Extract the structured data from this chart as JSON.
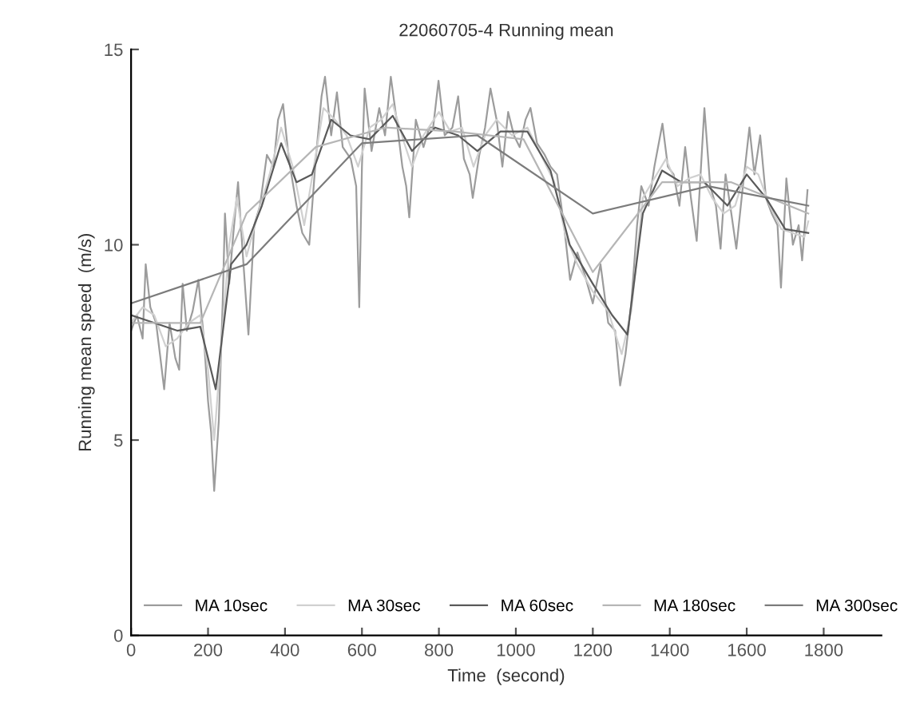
{
  "chart_data": {
    "type": "line",
    "title": "22060705-4 Running mean",
    "xlabel": "Time  (second)",
    "ylabel": "Running mean speed  (m/s)",
    "xlim": [
      0,
      1950
    ],
    "ylim": [
      0,
      15
    ],
    "xticks": [
      0,
      200,
      400,
      600,
      800,
      1000,
      1200,
      1400,
      1600,
      1800
    ],
    "yticks": [
      0,
      5,
      10,
      15
    ],
    "grid": false,
    "legend": "bottom",
    "marker": "none",
    "line_style": "solid",
    "series": [
      {
        "name": "MA 10sec",
        "color": "#9c9c9c",
        "x": [
          0,
          15,
          30,
          38,
          50,
          65,
          75,
          86,
          100,
          115,
          125,
          134,
          145,
          160,
          175,
          190,
          200,
          208,
          216,
          228,
          238,
          244,
          255,
          265,
          278,
          290,
          305,
          320,
          335,
          353,
          370,
          382,
          395,
          410,
          430,
          445,
          463,
          480,
          495,
          504,
          520,
          535,
          550,
          571,
          585,
          593,
          600,
          607,
          625,
          645,
          660,
          675,
          690,
          705,
          715,
          723,
          740,
          760,
          775,
          785,
          799,
          815,
          835,
          850,
          865,
          880,
          888,
          905,
          920,
          934,
          950,
          965,
          980,
          995,
          1010,
          1025,
          1038,
          1055,
          1075,
          1090,
          1107,
          1125,
          1141,
          1160,
          1180,
          1200,
          1220,
          1240,
          1258,
          1271,
          1285,
          1300,
          1315,
          1326,
          1345,
          1360,
          1381,
          1395,
          1410,
          1425,
          1440,
          1455,
          1470,
          1490,
          1505,
          1520,
          1532,
          1545,
          1560,
          1573,
          1590,
          1607,
          1620,
          1635,
          1650,
          1665,
          1680,
          1689,
          1703,
          1720,
          1735,
          1744,
          1758
        ],
        "values": [
          7.8,
          8.2,
          7.6,
          9.5,
          8.4,
          8.0,
          7.2,
          6.3,
          8.0,
          7.1,
          6.8,
          9.0,
          7.8,
          8.3,
          9.1,
          7.5,
          6.0,
          5.2,
          3.7,
          5.5,
          8.5,
          10.8,
          9.0,
          10.2,
          11.6,
          9.8,
          7.7,
          10.5,
          11.0,
          12.3,
          12.0,
          13.2,
          13.6,
          12.2,
          11.0,
          10.3,
          10.0,
          12.2,
          13.8,
          14.3,
          12.8,
          13.9,
          12.5,
          12.2,
          11.5,
          8.4,
          12.0,
          14.0,
          12.4,
          13.5,
          12.8,
          14.3,
          13.2,
          12.0,
          11.5,
          10.7,
          13.2,
          12.5,
          13.0,
          13.0,
          14.2,
          12.8,
          13.0,
          13.8,
          12.2,
          11.8,
          11.2,
          12.3,
          13.0,
          14.0,
          13.2,
          12.0,
          13.4,
          12.8,
          12.5,
          13.2,
          13.5,
          12.6,
          12.3,
          12.0,
          11.8,
          10.5,
          9.1,
          9.8,
          9.2,
          8.5,
          9.5,
          8.0,
          7.8,
          6.4,
          7.2,
          8.5,
          10.5,
          11.5,
          11.0,
          12.0,
          13.1,
          12.0,
          11.8,
          11.0,
          12.5,
          11.2,
          10.1,
          13.5,
          11.5,
          11.0,
          9.9,
          11.8,
          10.8,
          9.9,
          11.5,
          13.0,
          11.8,
          12.8,
          11.2,
          10.8,
          10.5,
          8.9,
          11.7,
          10.0,
          10.5,
          9.6,
          11.4
        ]
      },
      {
        "name": "MA 30sec",
        "color": "#d0d0d0",
        "x": [
          0,
          30,
          60,
          90,
          120,
          150,
          180,
          200,
          216,
          235,
          255,
          275,
          300,
          330,
          360,
          390,
          420,
          450,
          475,
          500,
          530,
          560,
          590,
          620,
          650,
          680,
          710,
          730,
          760,
          800,
          830,
          860,
          890,
          920,
          950,
          990,
          1030,
          1070,
          1100,
          1130,
          1160,
          1200,
          1240,
          1275,
          1300,
          1330,
          1360,
          1390,
          1420,
          1450,
          1480,
          1510,
          1540,
          1570,
          1600,
          1630,
          1660,
          1690,
          1720,
          1750,
          1760
        ],
        "values": [
          8.0,
          8.4,
          8.2,
          7.4,
          7.6,
          8.0,
          8.2,
          6.8,
          5.0,
          7.5,
          10.0,
          11.2,
          9.7,
          10.8,
          11.8,
          13.0,
          12.0,
          10.5,
          12.0,
          13.5,
          13.2,
          12.8,
          12.0,
          13.0,
          13.2,
          13.6,
          12.6,
          12.0,
          12.8,
          13.4,
          12.9,
          13.0,
          12.0,
          12.8,
          13.2,
          12.8,
          13.0,
          12.2,
          11.6,
          10.2,
          9.5,
          8.8,
          8.3,
          7.2,
          8.3,
          11.2,
          11.7,
          12.2,
          11.5,
          11.7,
          11.8,
          11.2,
          10.8,
          11.0,
          12.0,
          11.8,
          11.0,
          10.4,
          10.3,
          10.2,
          10.6
        ]
      },
      {
        "name": "MA 60sec",
        "color": "#5a5a5a",
        "x": [
          0,
          60,
          120,
          180,
          220,
          260,
          300,
          340,
          390,
          430,
          470,
          520,
          570,
          620,
          680,
          730,
          790,
          850,
          900,
          960,
          1030,
          1090,
          1140,
          1200,
          1250,
          1290,
          1330,
          1380,
          1430,
          1490,
          1550,
          1600,
          1650,
          1700,
          1760
        ],
        "values": [
          8.2,
          8.0,
          7.8,
          7.9,
          6.3,
          9.5,
          10.0,
          11.0,
          12.6,
          11.6,
          11.8,
          13.2,
          12.8,
          12.7,
          13.3,
          12.4,
          13.0,
          12.8,
          12.4,
          12.9,
          12.9,
          11.9,
          10.0,
          9.0,
          8.2,
          7.7,
          10.8,
          11.9,
          11.6,
          11.6,
          11.0,
          11.8,
          11.2,
          10.4,
          10.3
        ]
      },
      {
        "name": "MA 180sec",
        "color": "#b6b6b6",
        "x": [
          0,
          180,
          300,
          480,
          660,
          840,
          1020,
          1200,
          1380,
          1560,
          1760
        ],
        "values": [
          8.0,
          8.0,
          10.8,
          12.5,
          13.0,
          12.9,
          12.7,
          9.3,
          11.6,
          11.6,
          10.8
        ]
      },
      {
        "name": "MA 300sec",
        "color": "#7c7c7c",
        "x": [
          0,
          300,
          600,
          900,
          1200,
          1500,
          1760
        ],
        "values": [
          8.5,
          9.5,
          12.6,
          12.8,
          10.8,
          11.5,
          11.0
        ]
      }
    ]
  }
}
